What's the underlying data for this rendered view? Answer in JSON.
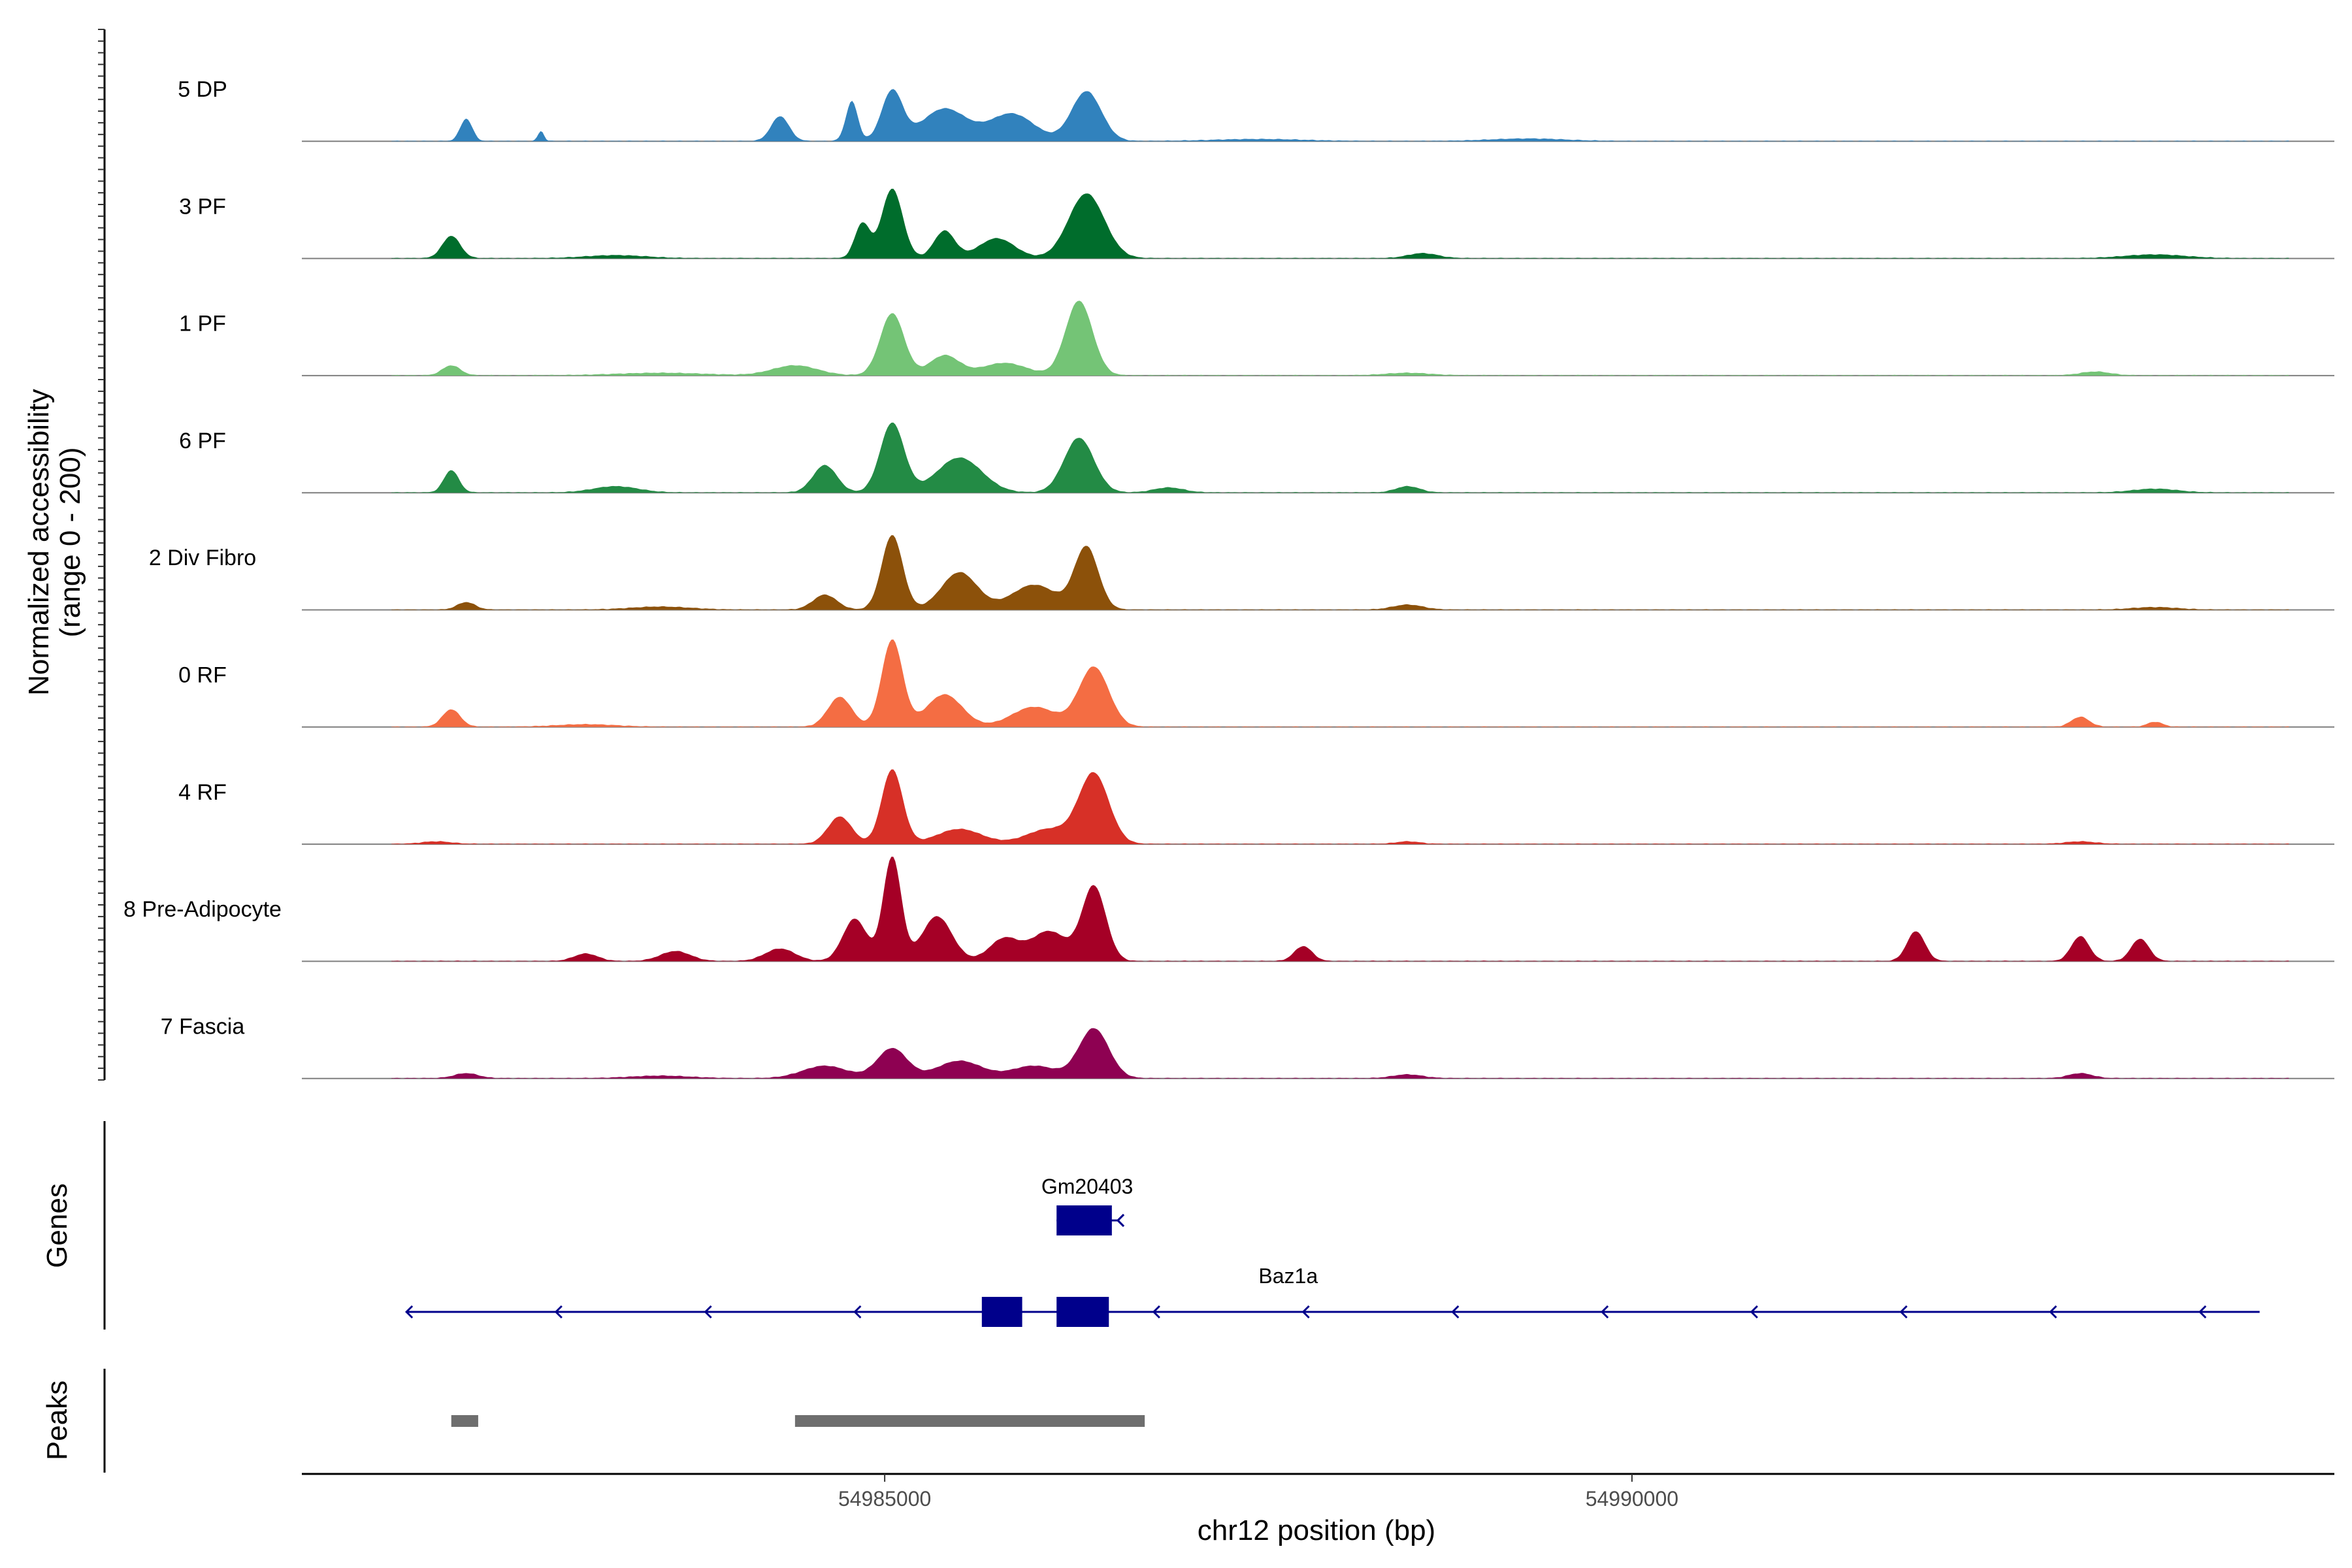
{
  "chart_data": {
    "type": "area",
    "title": "",
    "region": {
      "chrom": "chr12",
      "start": 54981100,
      "end": 54994700
    },
    "ylabel_line1": "Normalized accessibility",
    "ylabel_line2": "(range 0 - 200)",
    "xlabel": "chr12 position (bp)",
    "xticks": [
      {
        "value": 54985000,
        "label": "54985000"
      },
      {
        "value": 54990000,
        "label": "54990000"
      }
    ],
    "ylim": [
      0,
      200
    ],
    "series": [
      {
        "name": "5 DP",
        "color": "#3182bd",
        "peaks": [
          [
            54982200,
            90,
            40
          ],
          [
            54982700,
            40,
            20
          ],
          [
            54984300,
            100,
            60
          ],
          [
            54984780,
            160,
            40
          ],
          [
            54985050,
            200,
            70
          ],
          [
            54985400,
            130,
            150
          ],
          [
            54985850,
            110,
            150
          ],
          [
            54986350,
            200,
            100
          ],
          [
            54987500,
            8,
            300
          ],
          [
            54989300,
            10,
            250
          ]
        ]
      },
      {
        "name": "3 PF",
        "color": "#006d2c",
        "peaks": [
          [
            54982100,
            90,
            60
          ],
          [
            54983200,
            12,
            200
          ],
          [
            54984850,
            140,
            50
          ],
          [
            54985050,
            280,
            70
          ],
          [
            54985400,
            110,
            70
          ],
          [
            54985750,
            80,
            120
          ],
          [
            54986350,
            260,
            120
          ],
          [
            54988600,
            20,
            100
          ],
          [
            54993500,
            15,
            200
          ]
        ]
      },
      {
        "name": "1 PF",
        "color": "#74c476",
        "peaks": [
          [
            54982100,
            40,
            60
          ],
          [
            54983500,
            10,
            300
          ],
          [
            54984400,
            40,
            150
          ],
          [
            54985050,
            250,
            80
          ],
          [
            54985400,
            80,
            100
          ],
          [
            54985800,
            50,
            150
          ],
          [
            54986300,
            300,
            90
          ],
          [
            54988500,
            10,
            150
          ],
          [
            54993100,
            15,
            100
          ]
        ]
      },
      {
        "name": "6 PF",
        "color": "#238b45",
        "peaks": [
          [
            54982100,
            90,
            50
          ],
          [
            54983200,
            25,
            150
          ],
          [
            54984600,
            110,
            80
          ],
          [
            54985050,
            280,
            80
          ],
          [
            54985500,
            140,
            150
          ],
          [
            54986300,
            220,
            100
          ],
          [
            54986900,
            20,
            100
          ],
          [
            54988500,
            25,
            80
          ],
          [
            54993500,
            15,
            150
          ]
        ]
      },
      {
        "name": "2 Div Fibro",
        "color": "#8c510a",
        "peaks": [
          [
            54982200,
            30,
            60
          ],
          [
            54983500,
            12,
            200
          ],
          [
            54984600,
            60,
            80
          ],
          [
            54985050,
            300,
            70
          ],
          [
            54985500,
            150,
            120
          ],
          [
            54986000,
            100,
            150
          ],
          [
            54986350,
            250,
            80
          ],
          [
            54988500,
            20,
            100
          ],
          [
            54993500,
            10,
            150
          ]
        ]
      },
      {
        "name": "0 RF",
        "color": "#f46d43",
        "peaks": [
          [
            54982100,
            70,
            60
          ],
          [
            54983000,
            10,
            200
          ],
          [
            54984700,
            120,
            80
          ],
          [
            54985050,
            350,
            70
          ],
          [
            54985400,
            130,
            120
          ],
          [
            54986000,
            80,
            150
          ],
          [
            54986400,
            240,
            100
          ],
          [
            54993000,
            40,
            60
          ],
          [
            54993500,
            20,
            50
          ]
        ]
      },
      {
        "name": "4 RF",
        "color": "#d73027",
        "peaks": [
          [
            54982000,
            10,
            100
          ],
          [
            54984700,
            110,
            80
          ],
          [
            54985050,
            300,
            70
          ],
          [
            54985500,
            60,
            150
          ],
          [
            54986100,
            60,
            150
          ],
          [
            54986400,
            280,
            100
          ],
          [
            54988500,
            10,
            80
          ],
          [
            54993000,
            10,
            100
          ]
        ]
      },
      {
        "name": "8 Pre-Adipocyte",
        "color": "#a50026",
        "peaks": [
          [
            54983000,
            30,
            80
          ],
          [
            54983600,
            40,
            100
          ],
          [
            54984300,
            50,
            100
          ],
          [
            54984800,
            170,
            80
          ],
          [
            54985050,
            420,
            60
          ],
          [
            54985350,
            180,
            100
          ],
          [
            54985800,
            90,
            100
          ],
          [
            54986100,
            120,
            120
          ],
          [
            54986400,
            300,
            80
          ],
          [
            54987800,
            60,
            60
          ],
          [
            54991900,
            120,
            60
          ],
          [
            54993000,
            100,
            60
          ],
          [
            54993400,
            90,
            60
          ]
        ]
      },
      {
        "name": "7 Fascia",
        "color": "#8e0152",
        "peaks": [
          [
            54982200,
            20,
            80
          ],
          [
            54983500,
            10,
            200
          ],
          [
            54984600,
            50,
            150
          ],
          [
            54985050,
            120,
            100
          ],
          [
            54985500,
            70,
            150
          ],
          [
            54986000,
            50,
            150
          ],
          [
            54986400,
            200,
            100
          ],
          [
            54988500,
            15,
            100
          ],
          [
            54993000,
            20,
            80
          ]
        ]
      }
    ],
    "genes_label": "Genes",
    "genes": [
      {
        "name": "Gm20403",
        "strand": "-",
        "start": 54986150,
        "end": 54986560,
        "exons": [
          [
            54986150,
            54986520
          ]
        ]
      },
      {
        "name": "Baz1a",
        "strand": "-",
        "start": 54981800,
        "end": 54994200,
        "exons": [
          [
            54985650,
            54985920
          ],
          [
            54986150,
            54986500
          ]
        ]
      }
    ],
    "peaks_label": "Peaks",
    "peak_regions": [
      [
        54982100,
        54982280
      ],
      [
        54984400,
        54986740
      ]
    ]
  }
}
